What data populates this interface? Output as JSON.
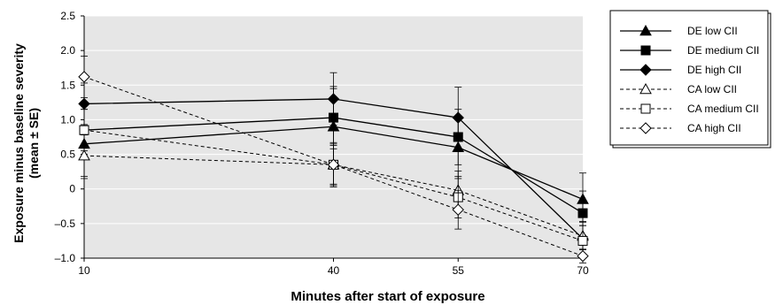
{
  "chart_data": {
    "type": "line",
    "xlabel": "Minutes after start of exposure",
    "ylabel_line1": "Exposure minus baseline severity",
    "ylabel_line2": "(mean ± SE)",
    "x": [
      10,
      40,
      55,
      70
    ],
    "x_tick_labels": [
      "10",
      "40",
      "55",
      "70"
    ],
    "ylim": [
      -1.0,
      2.5
    ],
    "y_ticks": [
      2.5,
      2.0,
      1.5,
      1.0,
      0.5,
      0,
      -0.5,
      -1.0
    ],
    "y_tick_labels": [
      "2.5",
      "2.0",
      "1.5",
      "1.0",
      "0.5",
      "0",
      "–0.5",
      "–1.0"
    ],
    "plot_background": "#e6e6e6",
    "grid": true,
    "legend_position": "right",
    "series": [
      {
        "name": "DE low CII",
        "values": [
          0.65,
          0.9,
          0.6,
          -0.15
        ],
        "err": [
          0.5,
          0.55,
          0.45,
          0.38
        ],
        "marker": "triangle",
        "filled": true,
        "dashed": false,
        "color": "#000000"
      },
      {
        "name": "DE medium CII",
        "values": [
          0.85,
          1.03,
          0.75,
          -0.35
        ],
        "err": [
          0.35,
          0.45,
          0.4,
          0.32
        ],
        "marker": "square",
        "filled": true,
        "dashed": false,
        "color": "#000000"
      },
      {
        "name": "DE high CII",
        "values": [
          1.23,
          1.3,
          1.03,
          -0.72
        ],
        "err": [
          0.3,
          0.38,
          0.44,
          0.25
        ],
        "marker": "diamond",
        "filled": true,
        "dashed": false,
        "color": "#000000"
      },
      {
        "name": "CA low CII",
        "values": [
          0.48,
          0.35,
          -0.02,
          -0.68
        ],
        "err": [
          0.3,
          0.32,
          0.28,
          0.2
        ],
        "marker": "triangle",
        "filled": false,
        "dashed": true,
        "color": "#000000"
      },
      {
        "name": "CA medium CII",
        "values": [
          0.85,
          0.35,
          -0.12,
          -0.75
        ],
        "err": [
          0.3,
          0.3,
          0.3,
          0.22
        ],
        "marker": "square",
        "filled": false,
        "dashed": true,
        "color": "#000000"
      },
      {
        "name": "CA high CII",
        "values": [
          1.62,
          0.35,
          -0.3,
          -0.97
        ],
        "err": [
          0.3,
          0.28,
          0.28,
          0.1
        ],
        "marker": "diamond",
        "filled": false,
        "dashed": true,
        "color": "#000000"
      }
    ]
  }
}
